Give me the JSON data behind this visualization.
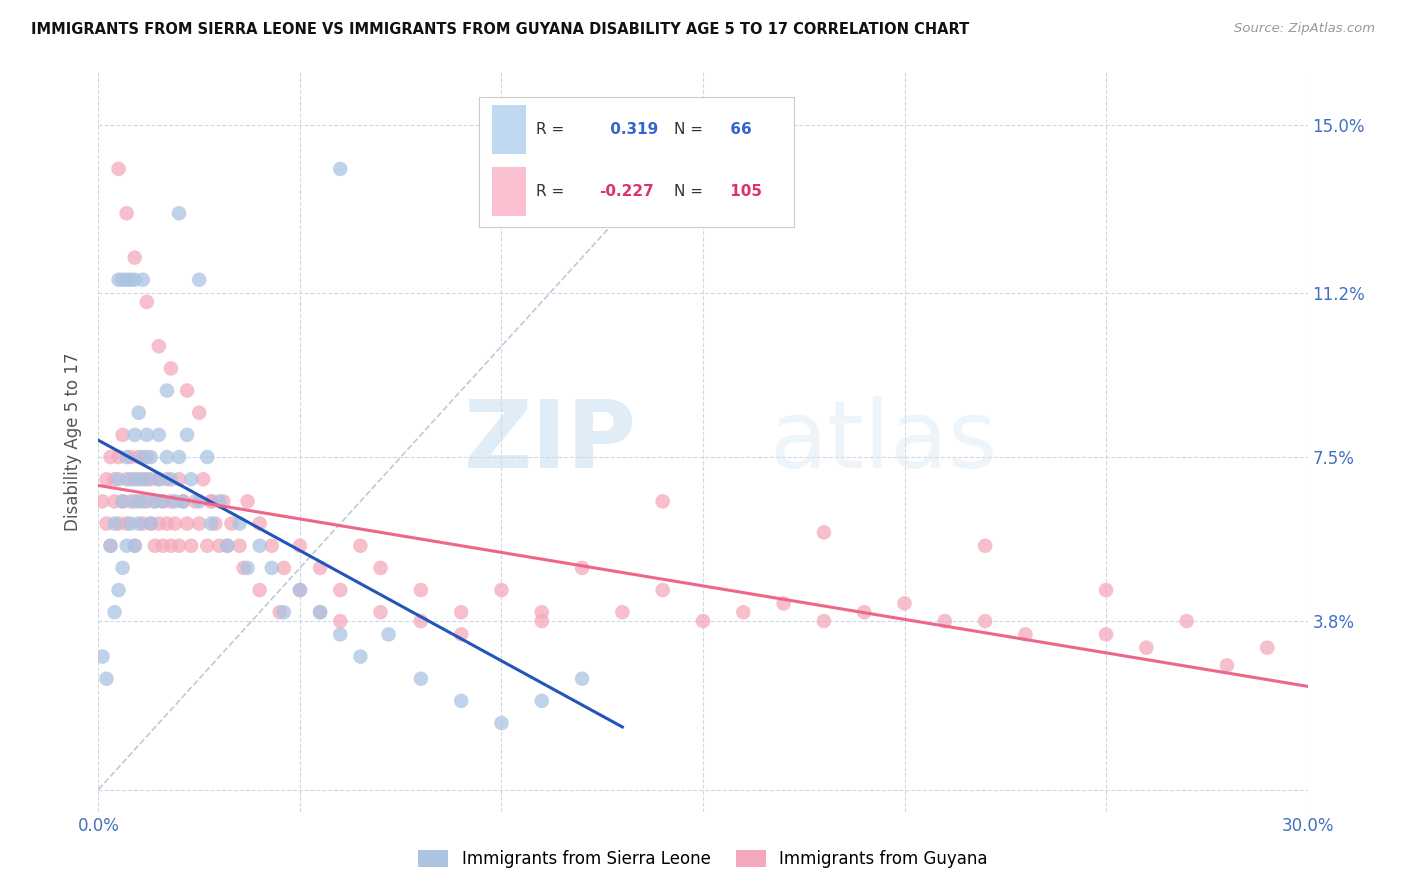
{
  "title": "IMMIGRANTS FROM SIERRA LEONE VS IMMIGRANTS FROM GUYANA DISABILITY AGE 5 TO 17 CORRELATION CHART",
  "source": "Source: ZipAtlas.com",
  "ylabel": "Disability Age 5 to 17",
  "xlim": [
    0.0,
    0.3
  ],
  "ylim": [
    -0.005,
    0.162
  ],
  "y_ticks": [
    0.0,
    0.038,
    0.075,
    0.112,
    0.15
  ],
  "y_tick_labels": [
    "",
    "3.8%",
    "7.5%",
    "11.2%",
    "15.0%"
  ],
  "x_ticks": [
    0.0,
    0.05,
    0.1,
    0.15,
    0.2,
    0.25,
    0.3
  ],
  "x_tick_labels": [
    "0.0%",
    "",
    "",
    "",
    "",
    "",
    "30.0%"
  ],
  "sierra_leone_R": 0.319,
  "sierra_leone_N": 66,
  "guyana_R": -0.227,
  "guyana_N": 105,
  "sierra_leone_color": "#aac4e2",
  "guyana_color": "#f5a8bc",
  "sierra_leone_line_color": "#2255bb",
  "guyana_line_color": "#ee6688",
  "diagonal_color": "#b8c4d4",
  "background_color": "#ffffff",
  "grid_color": "#d0d8e8",
  "watermark_zip": "ZIP",
  "watermark_atlas": "atlas",
  "legend_box_sierra_leone": "#c0d8f0",
  "legend_box_guyana": "#fac0d0",
  "sl_x": [
    0.001,
    0.002,
    0.003,
    0.004,
    0.004,
    0.005,
    0.005,
    0.006,
    0.006,
    0.007,
    0.007,
    0.008,
    0.008,
    0.009,
    0.009,
    0.009,
    0.01,
    0.01,
    0.01,
    0.011,
    0.011,
    0.012,
    0.012,
    0.013,
    0.013,
    0.014,
    0.015,
    0.015,
    0.016,
    0.017,
    0.017,
    0.018,
    0.019,
    0.02,
    0.021,
    0.022,
    0.023,
    0.025,
    0.027,
    0.028,
    0.03,
    0.032,
    0.035,
    0.037,
    0.04,
    0.043,
    0.046,
    0.05,
    0.055,
    0.06,
    0.065,
    0.072,
    0.08,
    0.09,
    0.1,
    0.11,
    0.12,
    0.06,
    0.02,
    0.025,
    0.008,
    0.006,
    0.005,
    0.007,
    0.009,
    0.011
  ],
  "sl_y": [
    0.03,
    0.025,
    0.055,
    0.04,
    0.06,
    0.045,
    0.07,
    0.05,
    0.065,
    0.055,
    0.075,
    0.06,
    0.07,
    0.055,
    0.065,
    0.08,
    0.06,
    0.07,
    0.085,
    0.065,
    0.075,
    0.07,
    0.08,
    0.06,
    0.075,
    0.065,
    0.07,
    0.08,
    0.065,
    0.075,
    0.09,
    0.07,
    0.065,
    0.075,
    0.065,
    0.08,
    0.07,
    0.065,
    0.075,
    0.06,
    0.065,
    0.055,
    0.06,
    0.05,
    0.055,
    0.05,
    0.04,
    0.045,
    0.04,
    0.035,
    0.03,
    0.035,
    0.025,
    0.02,
    0.015,
    0.02,
    0.025,
    0.14,
    0.13,
    0.115,
    0.115,
    0.115,
    0.115,
    0.115,
    0.115,
    0.115
  ],
  "gy_x": [
    0.001,
    0.002,
    0.002,
    0.003,
    0.003,
    0.004,
    0.004,
    0.005,
    0.005,
    0.006,
    0.006,
    0.007,
    0.007,
    0.008,
    0.008,
    0.009,
    0.009,
    0.01,
    0.01,
    0.011,
    0.011,
    0.012,
    0.012,
    0.013,
    0.013,
    0.014,
    0.014,
    0.015,
    0.015,
    0.016,
    0.016,
    0.017,
    0.017,
    0.018,
    0.018,
    0.019,
    0.02,
    0.02,
    0.021,
    0.022,
    0.023,
    0.024,
    0.025,
    0.026,
    0.027,
    0.028,
    0.029,
    0.03,
    0.031,
    0.033,
    0.035,
    0.037,
    0.04,
    0.043,
    0.046,
    0.05,
    0.055,
    0.06,
    0.065,
    0.07,
    0.08,
    0.09,
    0.1,
    0.11,
    0.12,
    0.14,
    0.16,
    0.18,
    0.2,
    0.22,
    0.25,
    0.27,
    0.29,
    0.005,
    0.007,
    0.009,
    0.012,
    0.015,
    0.018,
    0.022,
    0.025,
    0.028,
    0.032,
    0.036,
    0.04,
    0.045,
    0.05,
    0.055,
    0.06,
    0.07,
    0.08,
    0.09,
    0.11,
    0.13,
    0.15,
    0.17,
    0.19,
    0.21,
    0.23,
    0.26,
    0.28,
    0.14,
    0.18,
    0.22,
    0.25
  ],
  "gy_y": [
    0.065,
    0.06,
    0.07,
    0.055,
    0.075,
    0.065,
    0.07,
    0.06,
    0.075,
    0.065,
    0.08,
    0.07,
    0.06,
    0.075,
    0.065,
    0.07,
    0.055,
    0.065,
    0.075,
    0.06,
    0.07,
    0.065,
    0.075,
    0.06,
    0.07,
    0.065,
    0.055,
    0.07,
    0.06,
    0.065,
    0.055,
    0.06,
    0.07,
    0.055,
    0.065,
    0.06,
    0.07,
    0.055,
    0.065,
    0.06,
    0.055,
    0.065,
    0.06,
    0.07,
    0.055,
    0.065,
    0.06,
    0.055,
    0.065,
    0.06,
    0.055,
    0.065,
    0.06,
    0.055,
    0.05,
    0.055,
    0.05,
    0.045,
    0.055,
    0.05,
    0.045,
    0.04,
    0.045,
    0.04,
    0.05,
    0.045,
    0.04,
    0.038,
    0.042,
    0.038,
    0.035,
    0.038,
    0.032,
    0.14,
    0.13,
    0.12,
    0.11,
    0.1,
    0.095,
    0.09,
    0.085,
    0.065,
    0.055,
    0.05,
    0.045,
    0.04,
    0.045,
    0.04,
    0.038,
    0.04,
    0.038,
    0.035,
    0.038,
    0.04,
    0.038,
    0.042,
    0.04,
    0.038,
    0.035,
    0.032,
    0.028,
    0.065,
    0.058,
    0.055,
    0.045
  ]
}
